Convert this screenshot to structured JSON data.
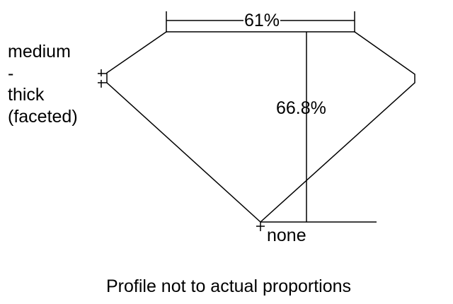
{
  "girdle": {
    "lines": [
      "medium",
      "-",
      "thick",
      "(faceted)"
    ]
  },
  "table_percent": "61%",
  "depth_percent": "66.8%",
  "culet": "none",
  "note": "Profile not to actual proportions"
}
